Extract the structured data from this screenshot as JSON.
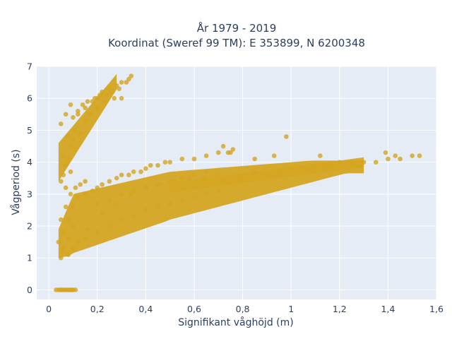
{
  "chart_data": {
    "type": "scatter",
    "title_line1": "År 1979 - 2019",
    "title_line2": "Koordinat (Sweref 99 TM): E 353899, N 6200348",
    "xlabel": "Signifikant våghöjd (m)",
    "ylabel": "Vågperiod (s)",
    "xlim": [
      -0.05,
      1.6
    ],
    "ylim": [
      -0.3,
      7.0
    ],
    "xticks": [
      0,
      0.2,
      0.4,
      0.6,
      0.8,
      1.0,
      1.2,
      1.4,
      1.6
    ],
    "xtick_labels": [
      "0",
      "0,2",
      "0,4",
      "0,6",
      "0,8",
      "1",
      "1,2",
      "1,4",
      "1,6"
    ],
    "yticks": [
      0,
      1,
      2,
      3,
      4,
      5,
      6,
      7
    ],
    "ytick_labels": [
      "0",
      "1",
      "2",
      "3",
      "4",
      "5",
      "6",
      "7"
    ],
    "grid": true,
    "colors": {
      "marker": "#d4a520",
      "plot_bg": "#e5ecf6",
      "text": "#2a3f5f"
    },
    "x": [
      0.05,
      0.07,
      0.09,
      0.11,
      0.06,
      0.08,
      0.1,
      0.12,
      0.15,
      0.18,
      0.2,
      0.22,
      0.25,
      0.28,
      0.3,
      0.33,
      0.06,
      0.08,
      0.1,
      0.05,
      0.07,
      0.09,
      0.12,
      0.14,
      0.16,
      0.19,
      0.21,
      0.24,
      0.26,
      0.29,
      0.32,
      0.34,
      0.07,
      0.09,
      0.11,
      0.13,
      0.15,
      0.17,
      0.2,
      0.23,
      0.27,
      0.3,
      0.05,
      0.06,
      0.08,
      0.1,
      0.04,
      0.05,
      0.06,
      0.08,
      0.1,
      0.12,
      0.15,
      0.18,
      0.2,
      0.22,
      0.25,
      0.28,
      0.3,
      0.33,
      0.35,
      0.38,
      0.4,
      0.42,
      0.45,
      0.48,
      0.5,
      0.55,
      0.6,
      0.65,
      0.7,
      0.75,
      0.8,
      0.85,
      0.9,
      0.95,
      1.0,
      1.05,
      1.1,
      1.15,
      1.2,
      1.25,
      1.3,
      1.35,
      1.4,
      1.45,
      1.5,
      1.53,
      0.1,
      0.15,
      0.2,
      0.25,
      0.3,
      0.35,
      0.4,
      0.45,
      0.5,
      0.55,
      0.6,
      0.65,
      0.7,
      0.08,
      0.12,
      0.16,
      0.22,
      0.28,
      0.34,
      0.4,
      0.46,
      0.52,
      0.58,
      0.64,
      0.7,
      0.05,
      0.07,
      0.09,
      0.11,
      0.13,
      0.15,
      0.03,
      0.04,
      0.05,
      0.06,
      0.07,
      0.08,
      0.09,
      0.1,
      0.11,
      0.98,
      0.72,
      0.74,
      0.76,
      0.85,
      0.93,
      1.12,
      1.39,
      1.43,
      0.2,
      0.25,
      0.3,
      0.35,
      0.4,
      0.45,
      0.5,
      0.55,
      0.6,
      0.65
    ],
    "y": [
      3.4,
      3.9,
      4.5,
      5.0,
      4.2,
      4.8,
      5.4,
      5.6,
      5.7,
      5.9,
      6.0,
      6.2,
      6.3,
      6.4,
      6.5,
      6.6,
      3.6,
      4.1,
      4.7,
      5.2,
      5.5,
      5.8,
      5.5,
      5.8,
      5.9,
      6.0,
      6.1,
      6.1,
      6.2,
      6.3,
      6.5,
      6.7,
      3.2,
      3.7,
      4.4,
      4.9,
      5.3,
      5.5,
      5.7,
      5.9,
      6.0,
      6.0,
      1.0,
      1.3,
      1.6,
      2.0,
      1.5,
      1.2,
      1.8,
      2.2,
      2.6,
      2.9,
      3.0,
      3.1,
      3.2,
      3.3,
      3.4,
      3.5,
      3.6,
      3.6,
      3.7,
      3.7,
      3.8,
      3.9,
      3.9,
      4.0,
      4.0,
      4.1,
      4.1,
      4.2,
      4.3,
      4.3,
      3.6,
      3.7,
      3.6,
      3.7,
      3.8,
      3.8,
      3.9,
      3.9,
      4.0,
      4.0,
      4.0,
      4.0,
      4.1,
      4.1,
      4.2,
      4.2,
      1.3,
      1.6,
      1.8,
      2.0,
      2.2,
      2.3,
      2.5,
      2.6,
      2.7,
      2.8,
      2.9,
      3.0,
      3.1,
      1.1,
      1.5,
      1.9,
      2.4,
      2.7,
      3.0,
      3.2,
      3.3,
      3.4,
      3.5,
      3.5,
      3.6,
      2.2,
      2.6,
      3.0,
      3.2,
      3.3,
      3.4,
      0.0,
      0.0,
      0.0,
      0.0,
      0.0,
      0.0,
      0.0,
      0.0,
      0.0,
      4.8,
      4.5,
      4.3,
      4.4,
      4.1,
      4.2,
      4.2,
      4.3,
      4.2,
      2.7,
      2.8,
      3.0,
      3.1,
      3.2,
      3.3,
      3.4,
      3.5,
      3.6,
      3.7
    ]
  }
}
